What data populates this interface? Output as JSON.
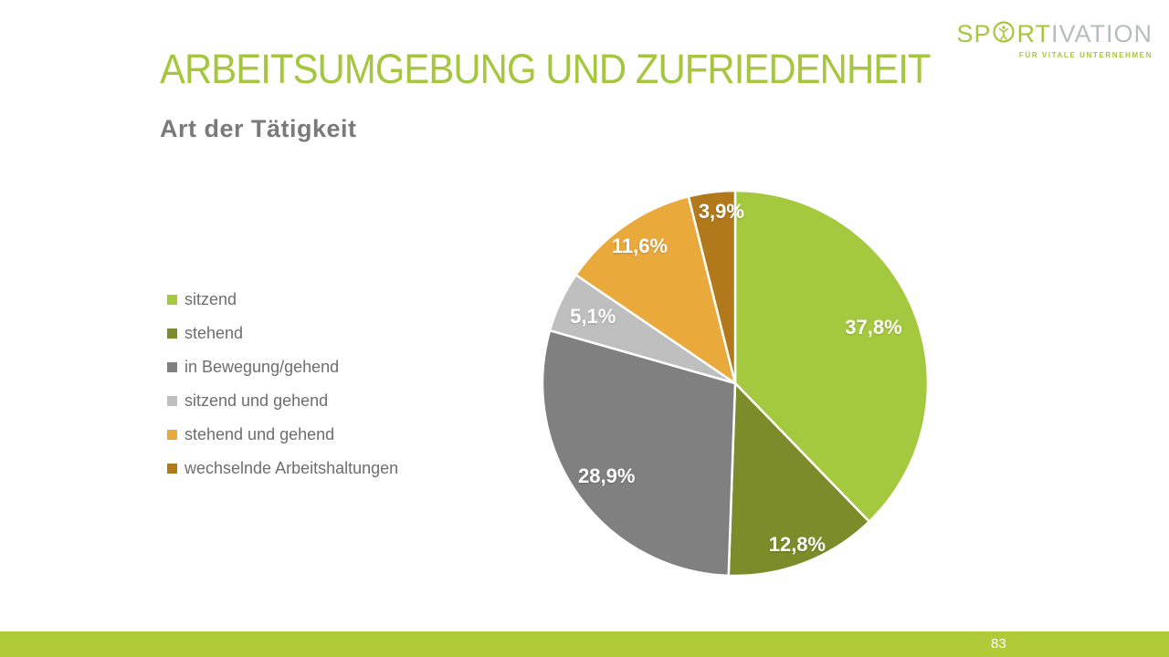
{
  "slide": {
    "title": "ARBEITSUMGEBUNG UND ZUFRIEDENHEIT",
    "subtitle": "Art der Tätigkeit",
    "page_number": "83"
  },
  "logo": {
    "part1": "SP",
    "part2": "RT",
    "part3": "IVATION",
    "tagline": "FÜR VITALE UNTERNEHMEN",
    "green": "#A5C63E",
    "gray": "#B7BCBE"
  },
  "chart_data": {
    "type": "pie",
    "title": "Art der Tätigkeit",
    "start_angle_deg": 0,
    "direction": "clockwise",
    "legend_position": "left",
    "categories": [
      "sitzend",
      "stehend",
      "in Bewegung/gehend",
      "sitzend und gehend",
      "stehend und gehend",
      "wechselnde Arbeitshaltungen"
    ],
    "values": [
      37.8,
      12.8,
      28.9,
      5.1,
      11.6,
      3.9
    ],
    "labels": [
      "37,8%",
      "12,8%",
      "28,9%",
      "5,1%",
      "11,6%",
      "3,9%"
    ],
    "colors": [
      "#A5C93E",
      "#7D8C2A",
      "#808080",
      "#BFBFBF",
      "#E9A93B",
      "#B1791A"
    ],
    "label_color": "#FFFFFF"
  },
  "colors": {
    "accent_green": "#A5C63E",
    "footer_bar": "#AFCB37",
    "subtitle_gray": "#7A7A7A",
    "legend_text_gray": "#6E6E6E"
  }
}
